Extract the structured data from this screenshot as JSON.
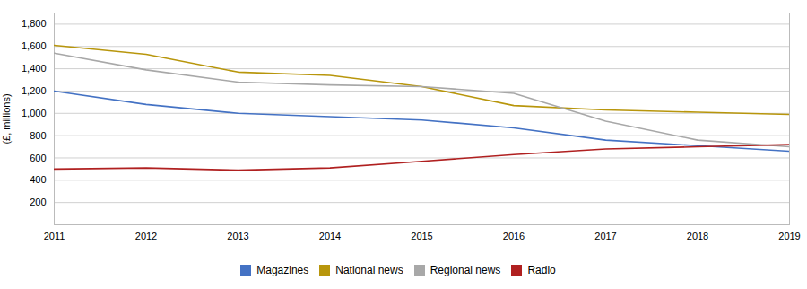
{
  "chart_data": {
    "type": "line",
    "x": [
      2011,
      2012,
      2013,
      2014,
      2015,
      2016,
      2017,
      2018,
      2019
    ],
    "series": [
      {
        "name": "Magazines",
        "color": "#4472C4",
        "values": [
          1200,
          1080,
          1000,
          970,
          940,
          870,
          760,
          710,
          660
        ]
      },
      {
        "name": "National news",
        "color": "#B8960C",
        "values": [
          1610,
          1530,
          1370,
          1340,
          1240,
          1070,
          1030,
          1010,
          990
        ]
      },
      {
        "name": "Regional news",
        "color": "#A8A8A8",
        "values": [
          1540,
          1390,
          1280,
          1255,
          1240,
          1180,
          930,
          760,
          700
        ]
      },
      {
        "name": "Radio",
        "color": "#B02020",
        "values": [
          500,
          510,
          490,
          510,
          570,
          630,
          680,
          700,
          720
        ]
      }
    ],
    "ylabel": "(£, millions)",
    "xlim": [
      2011,
      2019
    ],
    "xticks": [
      2011,
      2012,
      2013,
      2014,
      2015,
      2016,
      2017,
      2018,
      2019
    ],
    "ylim": [
      0,
      1900
    ],
    "yticks": [
      200,
      400,
      600,
      800,
      {
        "value": 1000,
        "label": "1,000"
      },
      {
        "value": 1200,
        "label": "1,200"
      },
      {
        "value": 1400,
        "label": "1,400"
      },
      {
        "value": 1600,
        "label": "1,600"
      },
      {
        "value": 1800,
        "label": "1,800"
      }
    ],
    "grid": true,
    "legend": "bottom"
  }
}
